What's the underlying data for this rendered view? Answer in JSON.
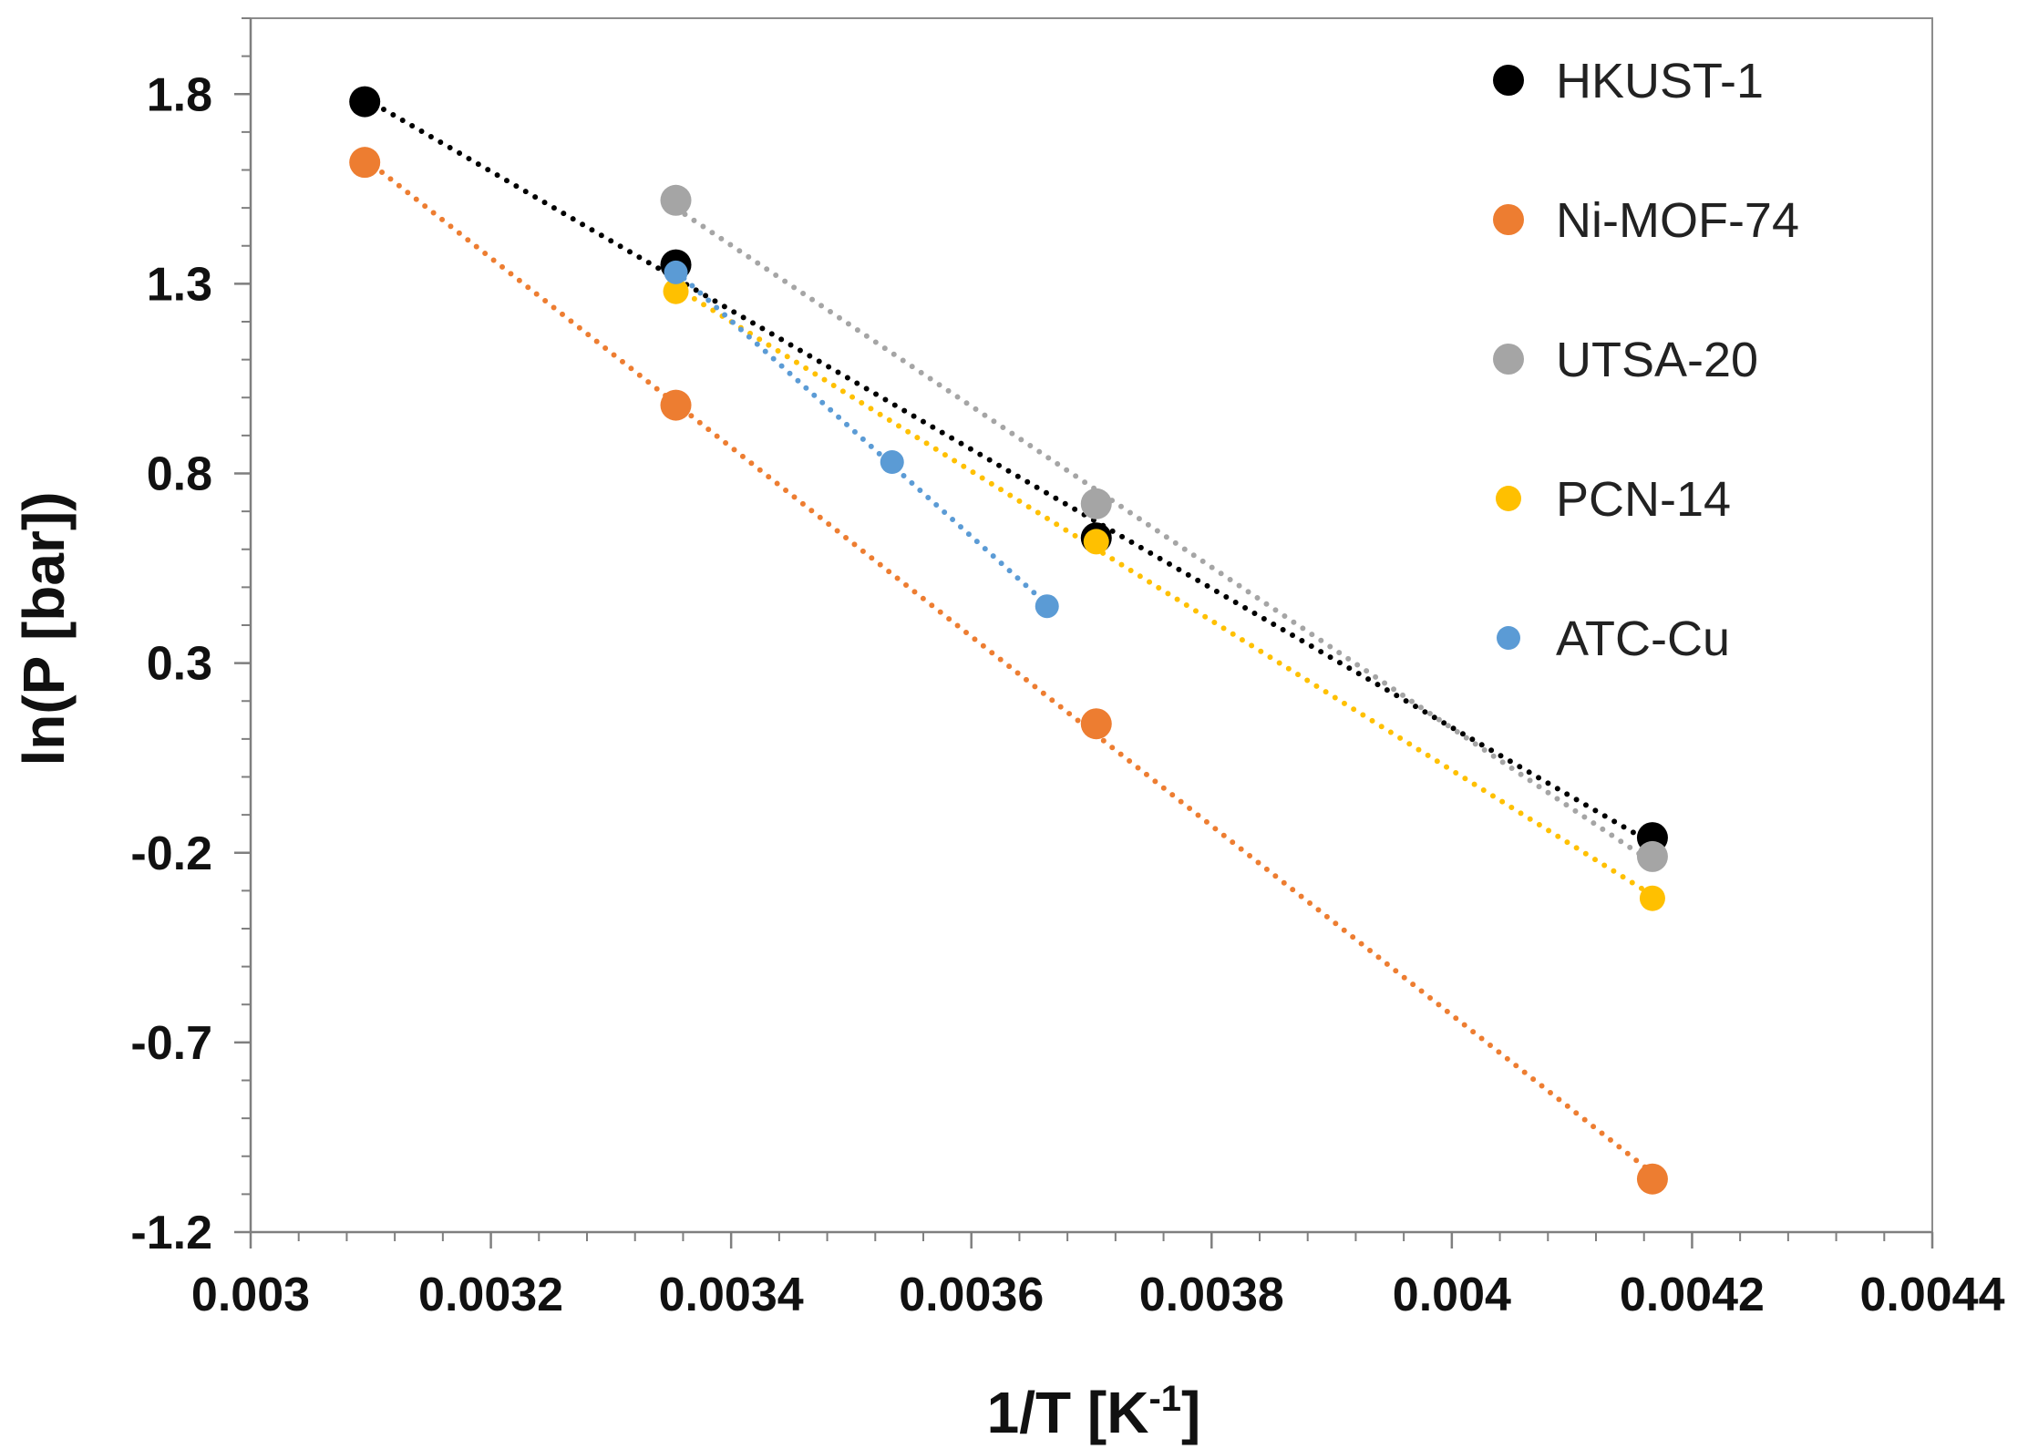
{
  "chart_data": {
    "type": "scatter",
    "title": "",
    "xlabel": "1/T [K",
    "xlabel_sup": "-1",
    "xlabel_end": "]",
    "ylabel": "ln(P [bar])",
    "xlim": [
      0.003,
      0.0044
    ],
    "ylim": [
      -1.2,
      2.0
    ],
    "x_ticks": [
      0.003,
      0.0032,
      0.0034,
      0.0036,
      0.0038,
      0.004,
      0.0042,
      0.0044
    ],
    "x_tick_labels": [
      "0.003",
      "0.0032",
      "0.0034",
      "0.0036",
      "0.0038",
      "0.004",
      "0.0042",
      "0.0044"
    ],
    "y_ticks": [
      1.8,
      1.3,
      0.8,
      0.3,
      -0.2,
      -0.7,
      -1.2
    ],
    "y_tick_labels": [
      "1.8",
      "1.3",
      "0.8",
      "0.3",
      "-0.2",
      "-0.7",
      "-1.2"
    ],
    "grid": false,
    "legend_position": "top-right",
    "trendlines": "linear, dotted",
    "series": [
      {
        "name": "HKUST-1",
        "color": "#000000",
        "marker": "large",
        "x": [
          0.003095,
          0.003354,
          0.003704,
          0.004167
        ],
        "y": [
          1.78,
          1.35,
          0.63,
          -0.16
        ]
      },
      {
        "name": "Ni-MOF-74",
        "color": "#ED7D31",
        "marker": "large",
        "x": [
          0.003095,
          0.003354,
          0.003704,
          0.004167
        ],
        "y": [
          1.62,
          0.98,
          0.14,
          -1.06
        ]
      },
      {
        "name": "UTSA-20",
        "color": "#A5A5A5",
        "marker": "large",
        "x": [
          0.003354,
          0.003704,
          0.004167
        ],
        "y": [
          1.52,
          0.72,
          -0.21
        ]
      },
      {
        "name": "PCN-14",
        "color": "#FFC000",
        "marker": "medium",
        "x": [
          0.003354,
          0.003704,
          0.004167
        ],
        "y": [
          1.28,
          0.62,
          -0.32
        ]
      },
      {
        "name": "ATC-Cu",
        "color": "#5B9BD5",
        "marker": "small",
        "x": [
          0.003354,
          0.003534,
          0.003663
        ],
        "y": [
          1.33,
          0.83,
          0.45
        ]
      }
    ]
  }
}
